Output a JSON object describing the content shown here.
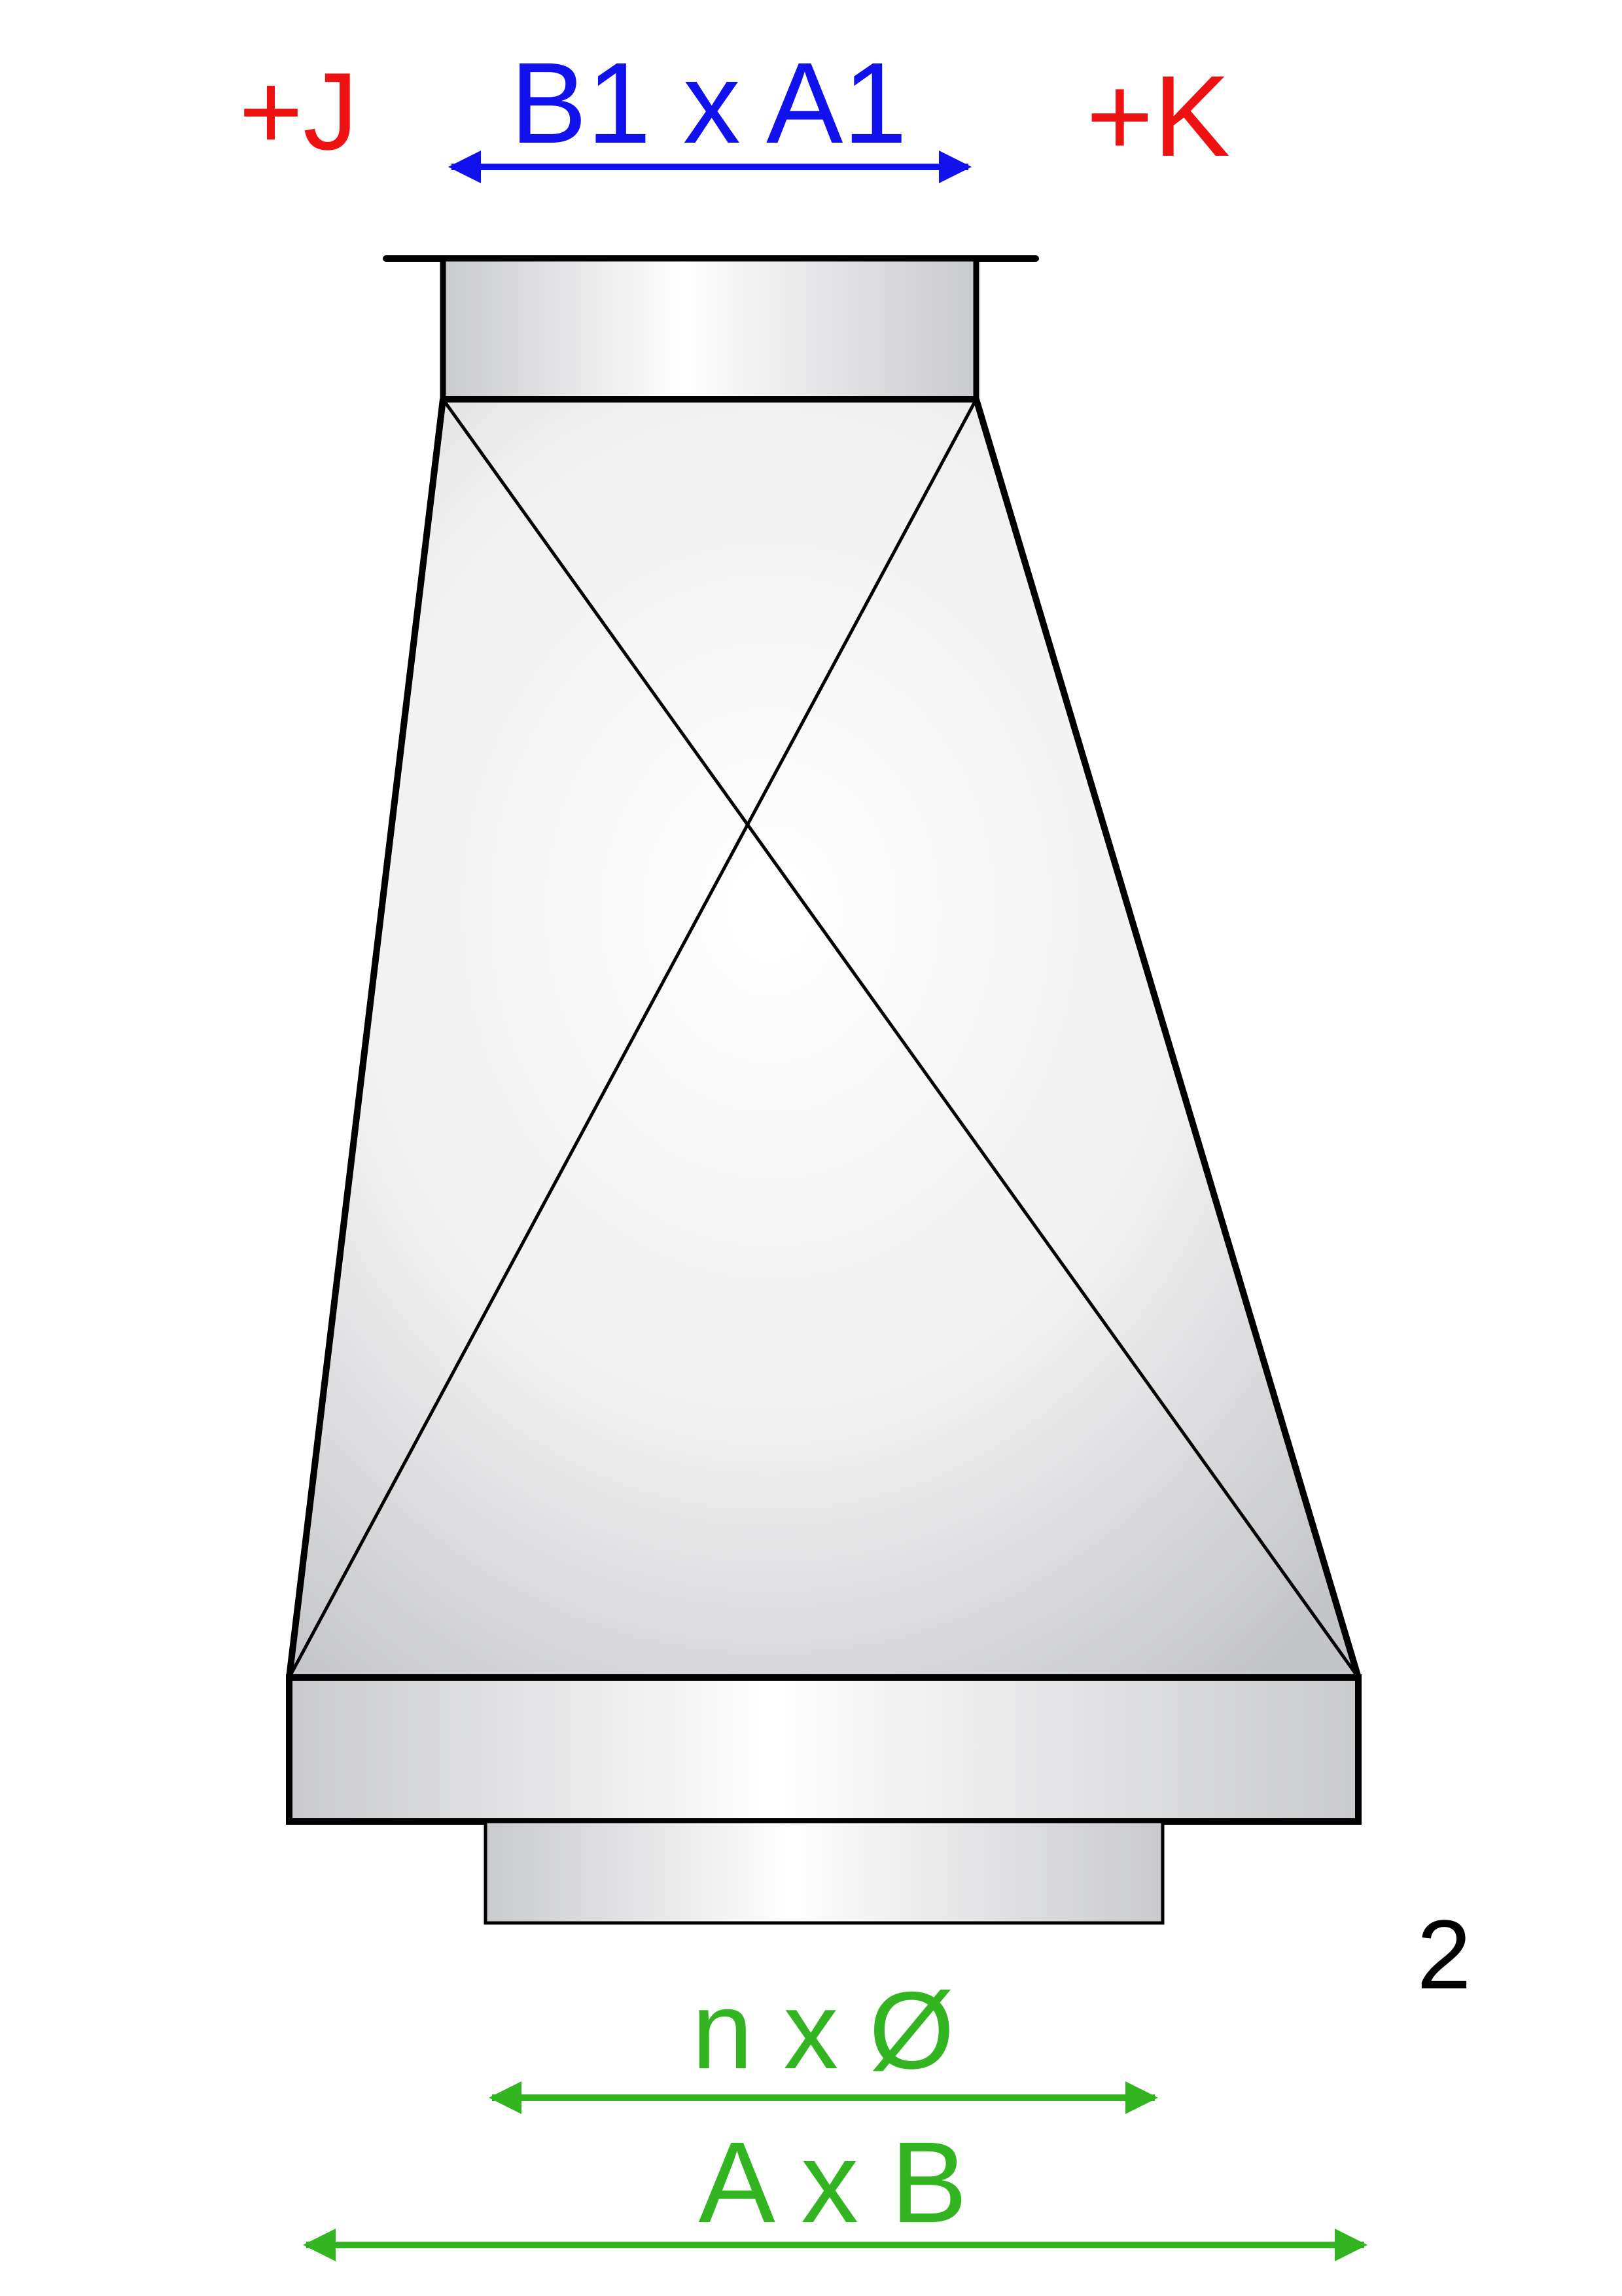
{
  "labels": {
    "top_dimension": "B1 x A1",
    "left_offset": "+J",
    "right_offset": "+K",
    "view_number": "2",
    "outlet_dimension": "n x Ø",
    "bottom_dimension": "A x B"
  },
  "colors": {
    "offset": "#ee1111",
    "top_dimension": "#1111ee",
    "bottom_dimension": "#33b522",
    "outline": "#000000"
  }
}
